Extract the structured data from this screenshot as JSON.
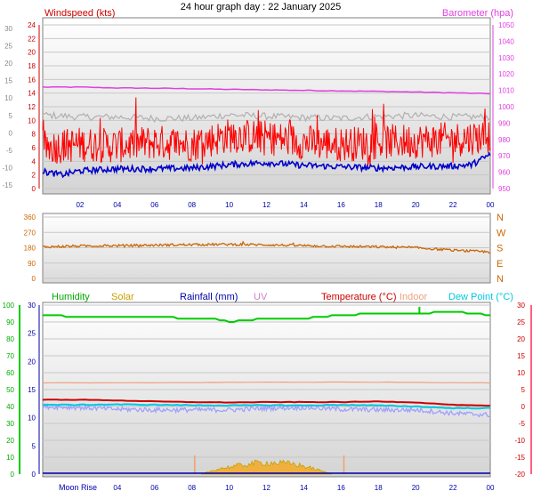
{
  "title": "24 hour graph day : 22 January 2025",
  "colors": {
    "windspeed": "#ff0000",
    "windavg": "#0000cc",
    "gust": "#b0b0b0",
    "barometer": "#e040e0",
    "direction": "#cc6600",
    "humidity": "#00cc00",
    "solar": "#c8a000",
    "rainfall": "#0000aa",
    "uv": "#d080d0",
    "temperature": "#cc0000",
    "indoor": "#f0a080",
    "dewpoint": "#00c8e0",
    "lowtemp": "#a0a0ff"
  },
  "x_tick_labels": [
    "02",
    "04",
    "06",
    "08",
    "10",
    "12",
    "14",
    "16",
    "18",
    "20",
    "22",
    "00"
  ],
  "moon": {
    "label": "Moon Rise"
  },
  "chart_data": [
    {
      "type": "line",
      "name": "wind-barometer",
      "x_range": [
        0,
        24
      ],
      "left_axis": {
        "label": "Windspeed (kts)",
        "range": [
          0,
          24
        ],
        "ticks": [
          "0",
          "2",
          "4",
          "6",
          "8",
          "10",
          "12",
          "14",
          "16",
          "18",
          "20",
          "22",
          "24"
        ]
      },
      "outer_left_axis": {
        "range": [
          -15,
          30
        ],
        "ticks": [
          "-15",
          "-10",
          "-5",
          "0",
          "5",
          "10",
          "15",
          "20",
          "25",
          "30"
        ]
      },
      "right_axis": {
        "label": "Barometer (hpa)",
        "range": [
          950,
          1050
        ],
        "ticks": [
          "950",
          "960",
          "970",
          "980",
          "990",
          "1000",
          "1010",
          "1020",
          "1030",
          "1040",
          "1050"
        ]
      },
      "series": [
        {
          "key": "barometer",
          "x": [
            0,
            2,
            4,
            6,
            8,
            10,
            12,
            14,
            16,
            18,
            20,
            22,
            24
          ],
          "y": [
            1012,
            1012,
            1011.5,
            1011.3,
            1011,
            1010.6,
            1010.3,
            1010,
            1009.7,
            1009.4,
            1009,
            1008.5,
            1008
          ]
        },
        {
          "key": "gust",
          "x": [
            0,
            2,
            4,
            6,
            8,
            10,
            12,
            14,
            16,
            18,
            20,
            22,
            24
          ],
          "y": [
            10.8,
            10.5,
            10.5,
            10.3,
            10.3,
            10.8,
            10.6,
            10.4,
            10.3,
            10.6,
            10.7,
            10.5,
            10.5
          ]
        },
        {
          "key": "windspeed",
          "x": [
            0,
            2,
            4,
            6,
            8,
            10,
            12,
            14,
            16,
            18,
            20,
            22,
            24
          ],
          "y": [
            6,
            6.5,
            6.3,
            6.8,
            6.5,
            7.8,
            7.5,
            6.8,
            6.5,
            6.8,
            7,
            7.2,
            7.8
          ]
        },
        {
          "key": "windavg",
          "x": [
            0,
            1,
            2,
            4,
            6,
            8,
            10,
            12,
            14,
            16,
            18,
            20,
            22,
            23,
            24
          ],
          "y": [
            2.5,
            2,
            2.6,
            2.9,
            2.9,
            3,
            3.5,
            3.8,
            3.4,
            3.2,
            3,
            3.2,
            3.3,
            3.5,
            5
          ]
        }
      ]
    },
    {
      "type": "line",
      "name": "wind-direction",
      "x_range": [
        0,
        24
      ],
      "left_axis": {
        "range": [
          0,
          360
        ],
        "ticks": [
          "0",
          "90",
          "180",
          "270",
          "360"
        ]
      },
      "right_axis": {
        "ticks": [
          "N",
          "E",
          "S",
          "W",
          "N"
        ]
      },
      "series": [
        {
          "key": "direction",
          "x": [
            0,
            2,
            4,
            6,
            8,
            10,
            12,
            14,
            16,
            18,
            20,
            22,
            24
          ],
          "y": [
            185,
            190,
            192,
            195,
            198,
            200,
            197,
            192,
            188,
            185,
            180,
            165,
            155
          ]
        }
      ]
    },
    {
      "type": "line",
      "name": "temperature-humidity",
      "x_range": [
        0,
        24
      ],
      "legend": [
        "Humidity",
        "Solar",
        "Rainfall (mm)",
        "UV",
        "Temperature (°C)",
        "Indoor",
        "Dew Point (°C)"
      ],
      "humidity_axis": {
        "range": [
          0,
          100
        ],
        "ticks": [
          "0",
          "10",
          "20",
          "30",
          "40",
          "50",
          "60",
          "70",
          "80",
          "90",
          "100"
        ]
      },
      "rain_axis": {
        "range": [
          0,
          30
        ],
        "ticks": [
          "0",
          "5",
          "10",
          "15",
          "20",
          "25",
          "30"
        ]
      },
      "temp_axis": {
        "range": [
          -20,
          30
        ],
        "ticks": [
          "-20",
          "-15",
          "-10",
          "-5",
          "0",
          "5",
          "10",
          "15",
          "20",
          "25",
          "30"
        ]
      },
      "series": [
        {
          "key": "humidity",
          "x": [
            0,
            2,
            4,
            6,
            8,
            9,
            10,
            11,
            12,
            14,
            16,
            18,
            20,
            22,
            24
          ],
          "y": [
            94,
            93,
            93,
            93,
            92,
            92,
            90,
            91,
            92,
            92,
            94,
            95,
            95,
            96,
            94
          ]
        },
        {
          "key": "indoor",
          "x": [
            0,
            6,
            12,
            18,
            24
          ],
          "y": [
            7,
            7,
            7.2,
            7.2,
            7
          ]
        },
        {
          "key": "temperature",
          "x": [
            0,
            2,
            4,
            6,
            8,
            10,
            12,
            14,
            16,
            18,
            20,
            22,
            24
          ],
          "y": [
            2,
            2,
            1.8,
            1.5,
            1.3,
            1.2,
            1.3,
            1.3,
            1.3,
            1.5,
            1.2,
            0.5,
            0.2
          ]
        },
        {
          "key": "dewpoint",
          "x": [
            0,
            2,
            4,
            6,
            8,
            10,
            12,
            14,
            16,
            18,
            20,
            22,
            24
          ],
          "y": [
            0.5,
            0.5,
            0.6,
            0.5,
            0.4,
            0.3,
            0.4,
            0.3,
            0.5,
            0.3,
            0,
            -0.5,
            -0.5
          ]
        },
        {
          "key": "lowtemp",
          "x": [
            0,
            2,
            4,
            6,
            8,
            10,
            12,
            14,
            16,
            18,
            20,
            22,
            24
          ],
          "y": [
            0,
            -0.3,
            -0.8,
            -1,
            -1,
            -1,
            -0.5,
            -0.3,
            -0.8,
            -1,
            -1,
            -2,
            -2.5
          ]
        },
        {
          "key": "solar",
          "x": [
            8.5,
            9.5,
            10.5,
            11.5,
            12.5,
            13.5,
            14.5,
            15.5
          ],
          "y": [
            0,
            1,
            1.5,
            2,
            2,
            1.8,
            1,
            0
          ]
        }
      ]
    }
  ]
}
